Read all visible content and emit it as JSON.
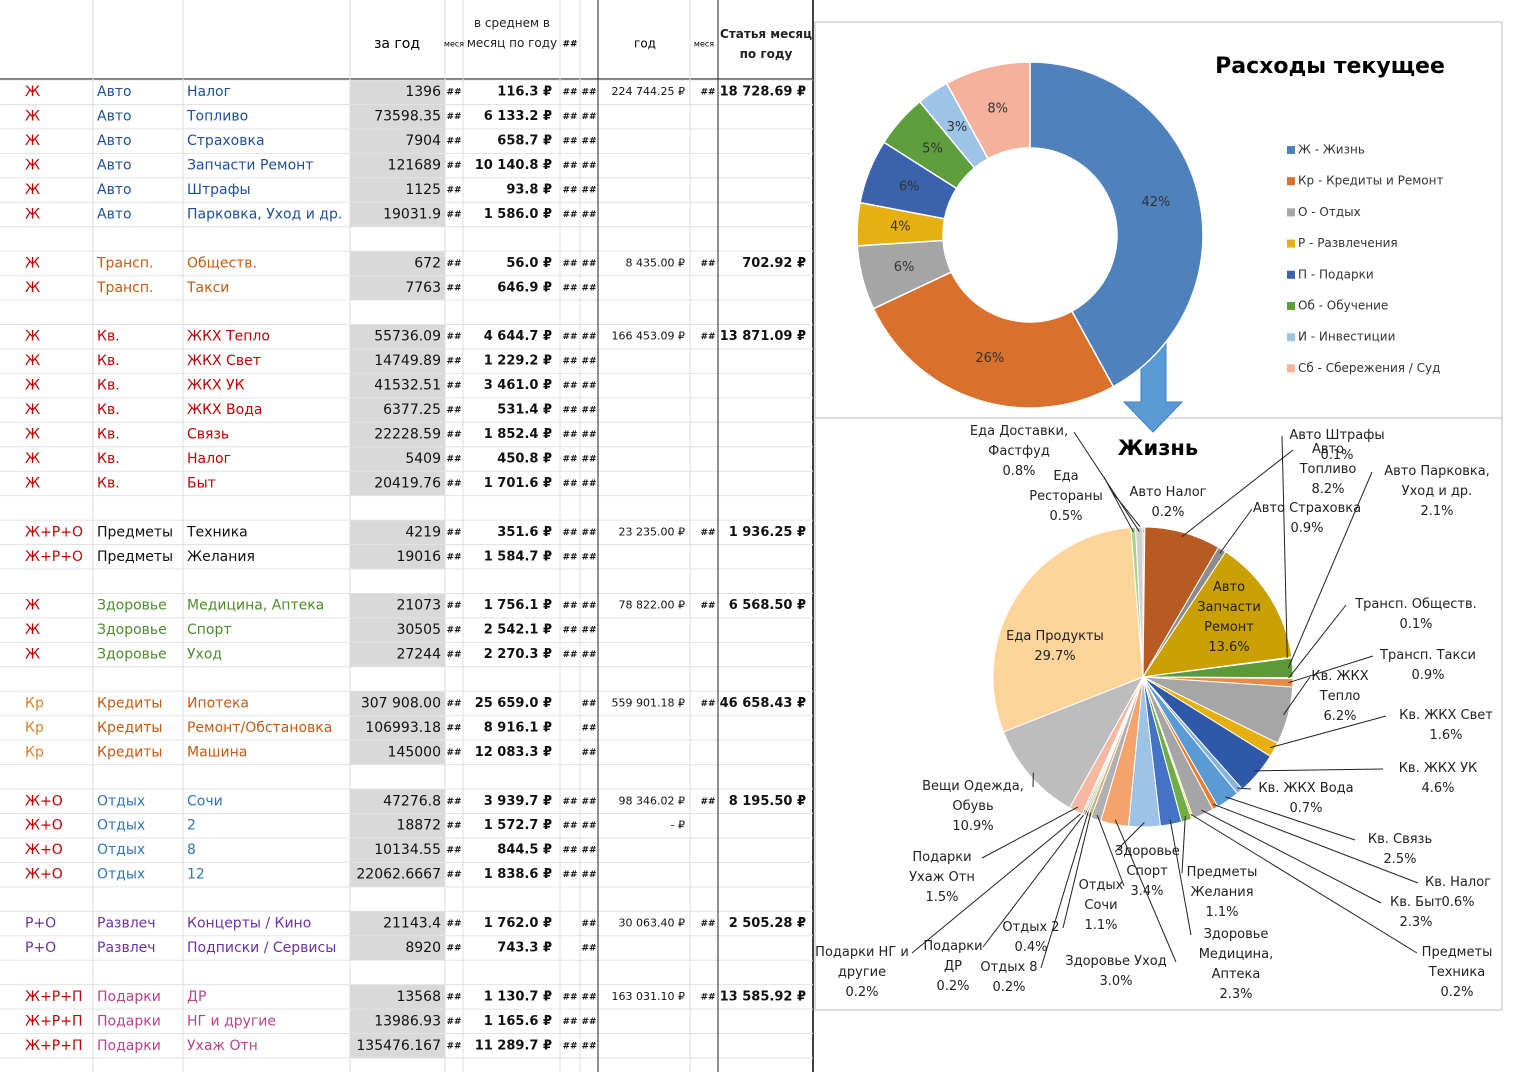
{
  "table": {
    "header": {
      "year": "за год",
      "m1": "меся",
      "avg": "в среднем в месяц по году",
      "m2": "##",
      "total": "год",
      "m4": "меся",
      "month": "Статья месяц по году"
    },
    "sections": [
      {
        "flag_color": "#c00000",
        "color": "#1f4e9a",
        "rows": [
          {
            "flag": "Ж",
            "group": "Авто",
            "item": "Налог",
            "year": "1396",
            "m1": "##",
            "avg": "116.3 ₽",
            "m2": "##",
            "m3": "##",
            "total": "224 744.25 ₽",
            "m4": "##",
            "month": "18 728.69 ₽"
          },
          {
            "flag": "Ж",
            "group": "Авто",
            "item": "Топливо",
            "year": "73598.35",
            "m1": "##",
            "avg": "6 133.2 ₽",
            "m2": "##",
            "m3": "##"
          },
          {
            "flag": "Ж",
            "group": "Авто",
            "item": "Страховка",
            "year": "7904",
            "m1": "##",
            "avg": "658.7 ₽",
            "m2": "##",
            "m3": "##"
          },
          {
            "flag": "Ж",
            "group": "Авто",
            "item": "Запчасти Ремонт",
            "year": "121689",
            "m1": "##",
            "avg": "10 140.8 ₽",
            "m2": "##",
            "m3": "##"
          },
          {
            "flag": "Ж",
            "group": "Авто",
            "item": "Штрафы",
            "year": "1125",
            "m1": "##",
            "avg": "93.8 ₽",
            "m2": "##",
            "m3": "##"
          },
          {
            "flag": "Ж",
            "group": "Авто",
            "item": "Парковка, Уход и др.",
            "year": "19031.9",
            "m1": "##",
            "avg": "1 586.0 ₽",
            "m2": "##",
            "m3": "##"
          }
        ]
      },
      {
        "flag_color": "#c00000",
        "color": "#c55a11",
        "rows": [
          {
            "flag": "Ж",
            "group": "Трансп.",
            "item": "Обществ.",
            "year": "672",
            "m1": "##",
            "avg": "56.0 ₽",
            "m2": "##",
            "m3": "##",
            "total": "8 435.00 ₽",
            "m4": "##",
            "month": "702.92 ₽"
          },
          {
            "flag": "Ж",
            "group": "Трансп.",
            "item": "Такси",
            "year": "7763",
            "m1": "##",
            "avg": "646.9 ₽",
            "m2": "##",
            "m3": "##"
          }
        ]
      },
      {
        "flag_color": "#c00000",
        "color": "#c00000",
        "rows": [
          {
            "flag": "Ж",
            "group": "Кв.",
            "item": "ЖКХ Тепло",
            "year": "55736.09",
            "m1": "##",
            "avg": "4 644.7 ₽",
            "m2": "##",
            "m3": "##",
            "total": "166 453.09 ₽",
            "m4": "##",
            "month": "13 871.09 ₽"
          },
          {
            "flag": "Ж",
            "group": "Кв.",
            "item": "ЖКХ Свет",
            "year": "14749.89",
            "m1": "##",
            "avg": "1 229.2 ₽",
            "m2": "##",
            "m3": "##"
          },
          {
            "flag": "Ж",
            "group": "Кв.",
            "item": "ЖКХ УК",
            "year": "41532.51",
            "m1": "##",
            "avg": "3 461.0 ₽",
            "m2": "##",
            "m3": "##"
          },
          {
            "flag": "Ж",
            "group": "Кв.",
            "item": "ЖКХ Вода",
            "year": "6377.25",
            "m1": "##",
            "avg": "531.4 ₽",
            "m2": "##",
            "m3": "##"
          },
          {
            "flag": "Ж",
            "group": "Кв.",
            "item": "Связь",
            "year": "22228.59",
            "m1": "##",
            "avg": "1 852.4 ₽",
            "m2": "##",
            "m3": "##"
          },
          {
            "flag": "Ж",
            "group": "Кв.",
            "item": "Налог",
            "year": "5409",
            "m1": "##",
            "avg": "450.8 ₽",
            "m2": "##",
            "m3": "##"
          },
          {
            "flag": "Ж",
            "group": "Кв.",
            "item": "Быт",
            "year": "20419.76",
            "m1": "##",
            "avg": "1 701.6 ₽",
            "m2": "##",
            "m3": "##"
          }
        ]
      },
      {
        "flag_color": "#c00000",
        "color": "#111111",
        "rows": [
          {
            "flag": "Ж+Р+О",
            "group": "Предметы",
            "item": "Техника",
            "year": "4219",
            "m1": "##",
            "avg": "351.6 ₽",
            "m2": "##",
            "m3": "##",
            "total": "23 235.00 ₽",
            "m4": "##",
            "month": "1 936.25 ₽"
          },
          {
            "flag": "Ж+Р+О",
            "group": "Предметы",
            "item": "Желания",
            "year": "19016",
            "m1": "##",
            "avg": "1 584.7 ₽",
            "m2": "##",
            "m3": "##"
          }
        ]
      },
      {
        "flag_color": "#c00000",
        "color": "#4e8a2e",
        "rows": [
          {
            "flag": "Ж",
            "group": "Здоровье",
            "item": "Медицина, Аптека",
            "year": "21073",
            "m1": "##",
            "avg": "1 756.1 ₽",
            "m2": "##",
            "m3": "##",
            "total": "78 822.00 ₽",
            "m4": "##",
            "month": "6 568.50 ₽"
          },
          {
            "flag": "Ж",
            "group": "Здоровье",
            "item": "Спорт",
            "year": "30505",
            "m1": "##",
            "avg": "2 542.1 ₽",
            "m2": "##",
            "m3": "##"
          },
          {
            "flag": "Ж",
            "group": "Здоровье",
            "item": "Уход",
            "year": "27244",
            "m1": "##",
            "avg": "2 270.3 ₽",
            "m2": "##",
            "m3": "##"
          }
        ]
      },
      {
        "flag_color": "#d9822b",
        "color": "#c55a11",
        "rows": [
          {
            "flag": "Кр",
            "group": "Кредиты",
            "item": "Ипотека",
            "year": "307 908.00",
            "m1": "##",
            "avg": "25 659.0 ₽",
            "m3": "##",
            "total": "559 901.18 ₽",
            "m4": "##",
            "month": "46 658.43 ₽"
          },
          {
            "flag": "Кр",
            "group": "Кредиты",
            "item": "Ремонт/Обстановка",
            "year": "106993.18",
            "m1": "##",
            "avg": "8 916.1 ₽",
            "m3": "##"
          },
          {
            "flag": "Кр",
            "group": "Кредиты",
            "item": "Машина",
            "year": "145000",
            "m1": "##",
            "avg": "12 083.3 ₽",
            "m3": "##"
          }
        ]
      },
      {
        "flag_color": "#c00000",
        "color": "#2e75b6",
        "rows": [
          {
            "flag": "Ж+О",
            "group": "Отдых",
            "item": "Сочи",
            "year": "47276.8",
            "m1": "##",
            "avg": "3 939.7 ₽",
            "m2": "##",
            "m3": "##",
            "total": "98 346.02 ₽",
            "m4": "##",
            "month": "8 195.50 ₽"
          },
          {
            "flag": "Ж+О",
            "group": "Отдых",
            "item": "2",
            "year": "18872",
            "m1": "##",
            "avg": "1 572.7 ₽",
            "m2": "##",
            "m3": "##",
            "total": "-   ₽"
          },
          {
            "flag": "Ж+О",
            "group": "Отдых",
            "item": "8",
            "year": "10134.55",
            "m1": "##",
            "avg": "844.5 ₽",
            "m2": "##",
            "m3": "##"
          },
          {
            "flag": "Ж+О",
            "group": "Отдых",
            "item": "12",
            "year": "22062.6667",
            "m1": "##",
            "avg": "1 838.6 ₽",
            "m2": "##",
            "m3": "##"
          }
        ]
      },
      {
        "flag_color": "#7030a0",
        "color": "#7030a0",
        "rows": [
          {
            "flag": "Р+О",
            "group": "Развлеч",
            "item": "Концерты / Кино",
            "year": "21143.4",
            "m1": "##",
            "avg": "1 762.0 ₽",
            "m3": "##",
            "total": "30 063.40 ₽",
            "m4": "##",
            "month": "2 505.28 ₽"
          },
          {
            "flag": "Р+О",
            "group": "Развлеч",
            "item": "Подписки / Сервисы",
            "year": "8920",
            "m1": "##",
            "avg": "743.3 ₽",
            "m3": "##"
          }
        ]
      },
      {
        "flag_color": "#c00000",
        "color": "#b9428a",
        "rows": [
          {
            "flag": "Ж+Р+П",
            "group": "Подарки",
            "item": "ДР",
            "year": "13568",
            "m1": "##",
            "avg": "1 130.7 ₽",
            "m2": "##",
            "m3": "##",
            "total": "163 031.10 ₽",
            "m4": "##",
            "month": "13 585.92 ₽"
          },
          {
            "flag": "Ж+Р+П",
            "group": "Подарки",
            "item": "НГ и другие",
            "year": "13986.93",
            "m1": "##",
            "avg": "1 165.6 ₽",
            "m2": "##",
            "m3": "##"
          },
          {
            "flag": "Ж+Р+П",
            "group": "Подарки",
            "item": "Ухаж Отн",
            "year": "135476.167",
            "m1": "##",
            "avg": "11 289.7 ₽",
            "m2": "##",
            "m3": "##"
          }
        ]
      }
    ]
  },
  "chart_data": [
    {
      "type": "donut",
      "title": "Расходы текущее",
      "legend": "right",
      "categories": [
        "Ж - Жизнь",
        "Кр - Кредиты и Ремонт",
        "О - Отдых",
        "Р - Развлечения",
        "П - Подарки",
        "Об - Обучение",
        "И - Инвестиции",
        "Сб - Сбережения / Суд"
      ],
      "values": [
        42,
        26,
        6,
        4,
        6,
        5,
        3,
        8
      ],
      "value_labels": [
        "42%",
        "26%",
        "6%",
        "4%",
        "6%",
        "5%",
        "3%",
        "8%"
      ],
      "colors": [
        "#4f81bd",
        "#d9702c",
        "#a5a5a5",
        "#e6b012",
        "#3a62ad",
        "#5f9e3d",
        "#9dc3e6",
        "#f4b19b"
      ]
    },
    {
      "type": "pie",
      "title": "Жизнь",
      "categories": [
        "Авто Налог",
        "Авто Топливо",
        "Авто Страховка",
        "Авто Запчасти Ремонт",
        "Авто Штрафы",
        "Авто Парковка, Уход и др.",
        "Трансп. Обществ.",
        "Трансп. Такси",
        "Кв. ЖКХ Тепло",
        "Кв. ЖКХ Свет",
        "Кв. ЖКХ УК",
        "Кв. ЖКХ Вода",
        "Кв. Связь",
        "Кв. Налог",
        "Кв. Быт",
        "Предметы Техника",
        "Предметы Желания",
        "Здоровье Медицина, Аптека",
        "Здоровье Спорт",
        "Здоровье Уход",
        "Отдых Сочи",
        "Отдых 2",
        "Отдых 8",
        "Подарки ДР",
        "Подарки НГ и другие",
        "Подарки Ухаж Отн",
        "Вещи Одежда, Обувь",
        "Еда Продукты",
        "Еда Рестораны",
        "Еда Доставки, Фастфуд"
      ],
      "values": [
        0.2,
        8.2,
        0.9,
        13.6,
        0.1,
        2.1,
        0.1,
        0.9,
        6.2,
        1.6,
        4.6,
        0.7,
        2.5,
        0.6,
        2.3,
        0.2,
        1.1,
        2.3,
        3.4,
        3.0,
        1.1,
        0.4,
        0.2,
        0.2,
        0.2,
        1.5,
        10.9,
        29.7,
        0.5,
        0.8
      ],
      "value_labels": [
        "0.2%",
        "8.2%",
        "0.9%",
        "13.6%",
        "0.1%",
        "2.1%",
        "0.1%",
        "0.9%",
        "6.2%",
        "1.6%",
        "4.6%",
        "0.7%",
        "2.5%",
        "0.6%",
        "2.3%",
        "0.2%",
        "1.1%",
        "2.3%",
        "3.4%",
        "3.0%",
        "1.1%",
        "0.4%",
        "0.2%",
        "0.2%",
        "0.2%",
        "1.5%",
        "10.9%",
        "29.7%",
        "0.5%",
        "0.8%"
      ],
      "colors": [
        "#c9c9c9",
        "#b85b22",
        "#8c8c8c",
        "#c9a000",
        "#2f4f8f",
        "#5b9a37",
        "#9dc3e6",
        "#e98a45",
        "#a6a6a6",
        "#e6b012",
        "#2e59a8",
        "#8ab4e0",
        "#5b9bd5",
        "#ed7d31",
        "#a5a5a5",
        "#ffc000",
        "#70ad47",
        "#4472c4",
        "#9dc3e6",
        "#f4a46a",
        "#b0b0b0",
        "#d4b26a",
        "#7f9fd0",
        "#8fbf70",
        "#c0c0c0",
        "#f6b8a0",
        "#bdbdbd",
        "#fdd59a",
        "#a9d18e",
        "#d0d0d0"
      ]
    }
  ]
}
